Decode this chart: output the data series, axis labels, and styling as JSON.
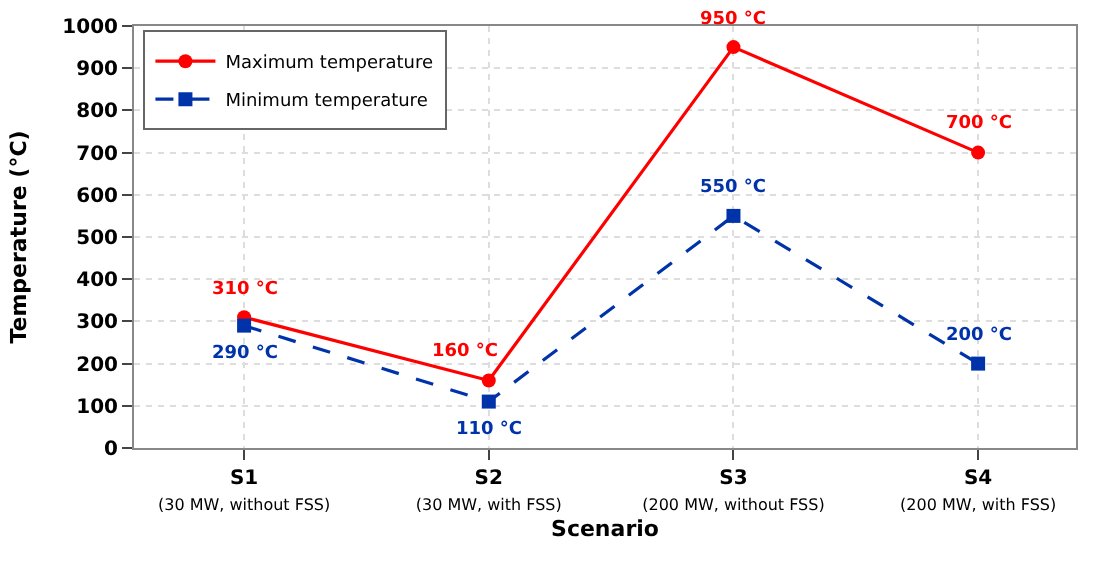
{
  "chart_data": {
    "type": "line",
    "xlabel": "Scenario",
    "ylabel": "Temperature (°C)",
    "categories": [
      "S1\n(30 MW, without FSS)",
      "S2\n(30 MW, with FSS)",
      "S3\n(200 MW, without FSS)",
      "S4\n(200 MW, with FSS)"
    ],
    "series": [
      {
        "name": "Maximum temperature",
        "color": "#ff0000",
        "values": [
          310,
          160,
          950,
          700
        ],
        "marker": "circle",
        "line_style": "solid",
        "value_labels": [
          "310 °C",
          "160 °C",
          "950 °C",
          "700 °C"
        ]
      },
      {
        "name": "Minimum temperature",
        "color": "#0033aa",
        "values": [
          290,
          110,
          550,
          200
        ],
        "marker": "square",
        "line_style": "dashed",
        "value_labels": [
          "290 °C",
          "110 °C",
          "550 °C",
          "200 °C"
        ]
      }
    ],
    "ylim": [
      0,
      1000
    ],
    "yticks": [
      0,
      100,
      200,
      300,
      400,
      500,
      600,
      700,
      800,
      900,
      1000
    ],
    "grid": true,
    "legend": "top left"
  }
}
